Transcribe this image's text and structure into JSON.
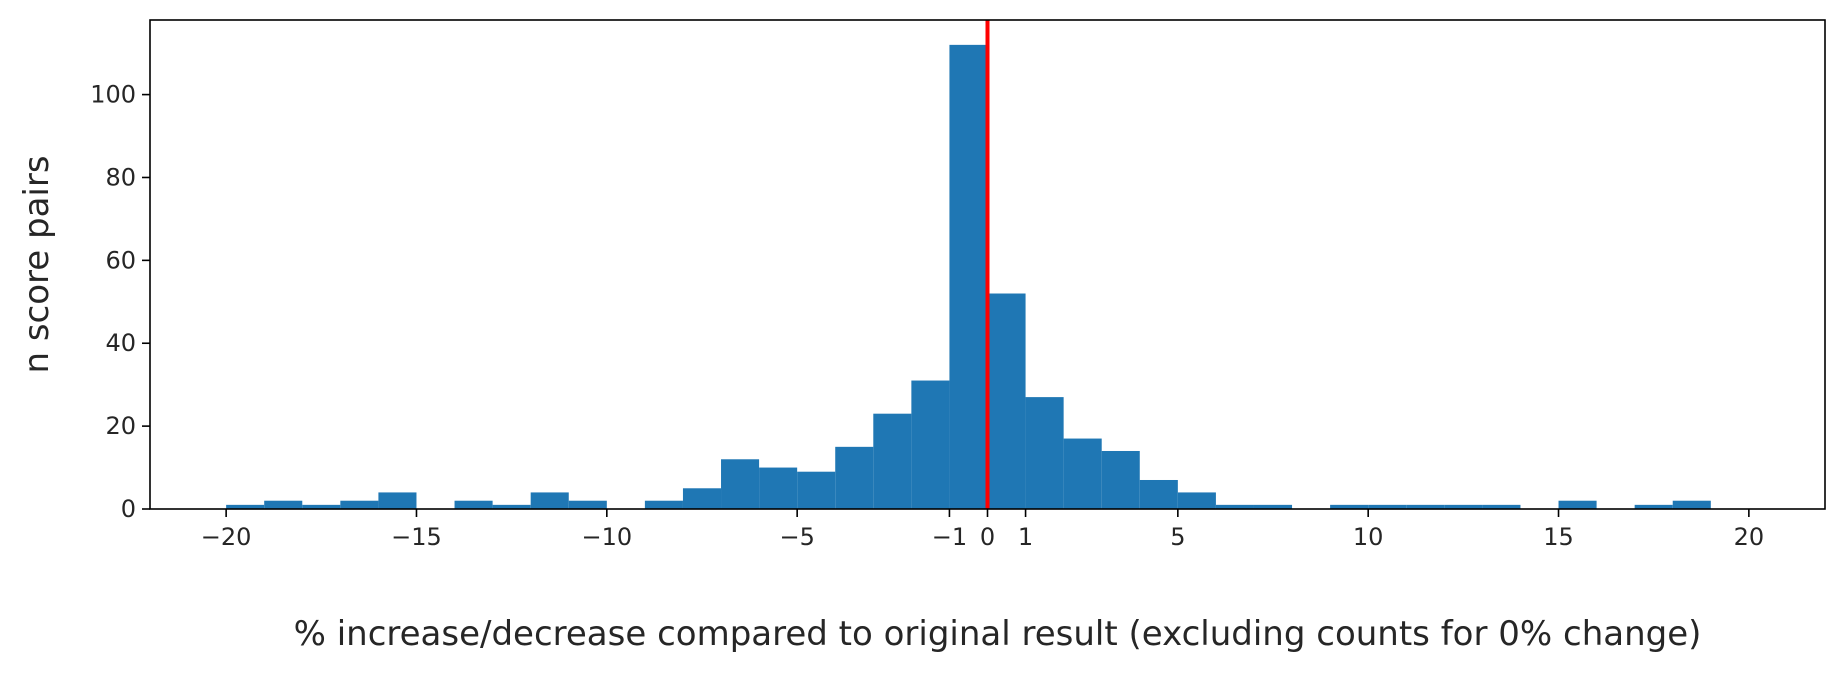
{
  "chart_data": {
    "type": "bar",
    "xlabel": "% increase/decrease compared to original result (excluding counts for 0% change)",
    "ylabel": "n score pairs",
    "xlim": [
      -22,
      22
    ],
    "ylim": [
      0,
      118
    ],
    "xticks": [
      -20,
      -15,
      -10,
      -5,
      -1,
      0,
      1,
      5,
      10,
      15,
      20
    ],
    "xtick_labels": [
      "−20",
      "−15",
      "−10",
      "−5",
      "−1",
      "0",
      "1",
      "5",
      "10",
      "15",
      "20"
    ],
    "yticks": [
      0,
      20,
      40,
      60,
      80,
      100
    ],
    "ytick_labels": [
      "0",
      "20",
      "40",
      "60",
      "80",
      "100"
    ],
    "bin_edges": [
      -20,
      -19,
      -18,
      -17,
      -16,
      -15,
      -14,
      -13,
      -12,
      -11,
      -10,
      -9,
      -8,
      -7,
      -6,
      -5,
      -4,
      -3,
      -2,
      -1,
      0,
      1,
      2,
      3,
      4,
      5,
      6,
      7,
      8,
      9,
      10,
      11,
      12,
      13,
      14,
      15,
      16,
      17,
      18,
      19,
      20
    ],
    "values": [
      1,
      2,
      1,
      2,
      4,
      0,
      2,
      1,
      4,
      2,
      0,
      2,
      5,
      12,
      10,
      9,
      15,
      23,
      31,
      112,
      52,
      27,
      17,
      14,
      7,
      4,
      1,
      1,
      0,
      1,
      1,
      1,
      1,
      1,
      0,
      2,
      0,
      1,
      2,
      0
    ],
    "bar_color": "#1f77b4",
    "reference_line": {
      "x": 0,
      "color": "#ff0000"
    },
    "grid": false
  }
}
